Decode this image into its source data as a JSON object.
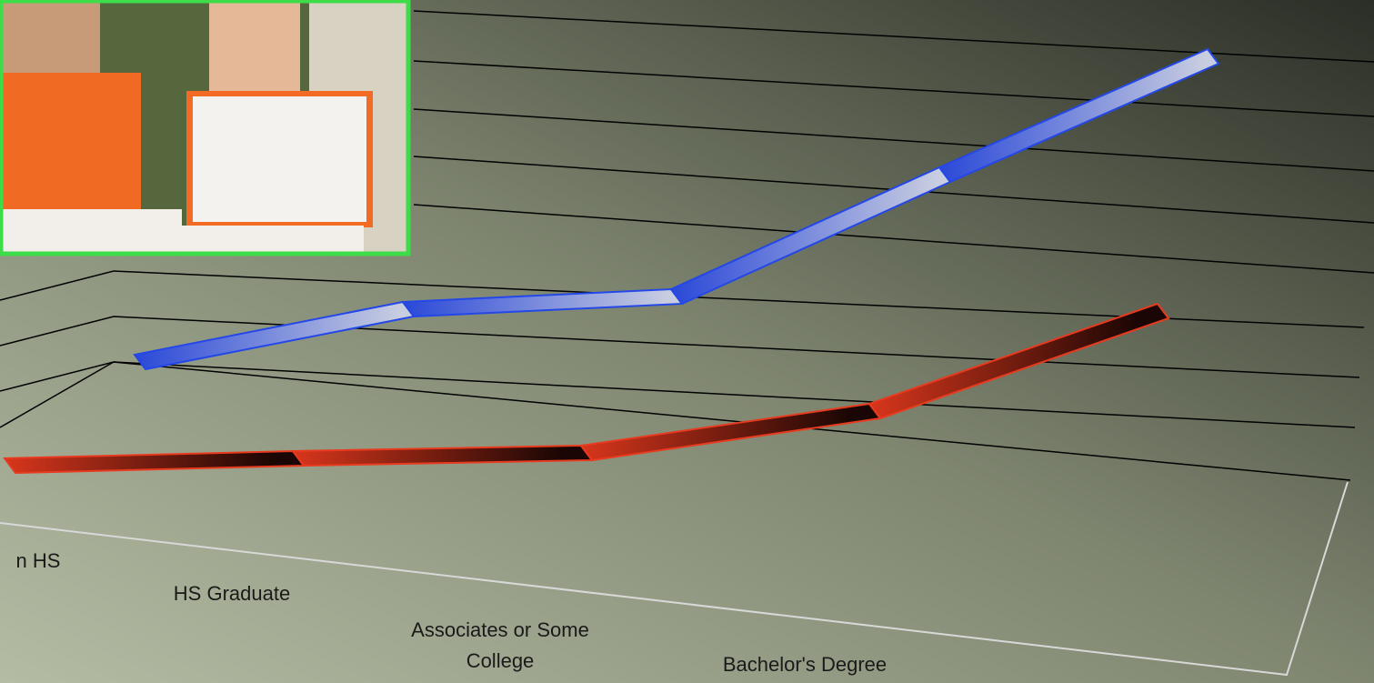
{
  "chart_data": {
    "type": "line3d",
    "categories": [
      "n HS",
      "HS Graduate",
      "Associates or Some College",
      "Bachelor's Degree",
      null
    ],
    "series": [
      {
        "color": "#e83a1e",
        "values": [
          0.25,
          0.7,
          1.1,
          2.5,
          5.5
        ]
      },
      {
        "color": "#2448e8",
        "values": [
          0.6,
          2.3,
          2.9,
          6.5,
          10
        ]
      }
    ],
    "ylim": [
      0,
      10
    ]
  }
}
